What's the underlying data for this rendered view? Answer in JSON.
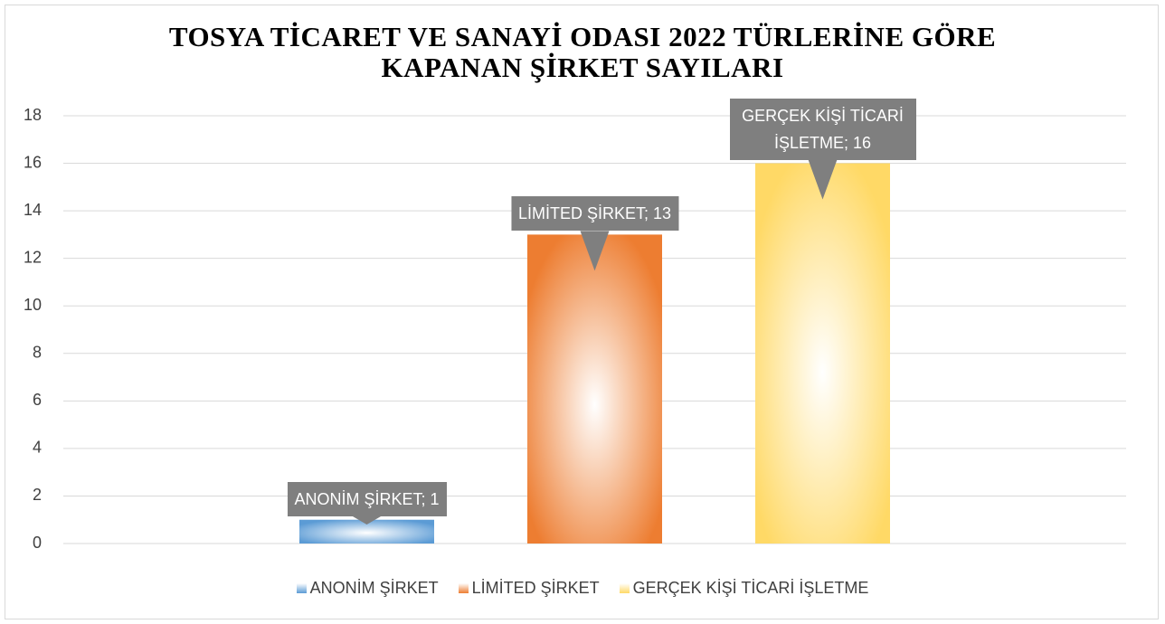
{
  "chart_data": {
    "type": "bar",
    "title": "TOSYA TİCARET VE SANAYİ ODASI 2022 TÜRLERİNE GÖRE KAPANAN ŞİRKET SAYILARI",
    "categories": [
      null
    ],
    "series": [
      {
        "name": "ANONİM ŞİRKET",
        "color": "#5b9bd5",
        "values": [
          1
        ],
        "value_labels": [
          "ANONİM ŞİRKET; 1"
        ]
      },
      {
        "name": "LİMİTED ŞİRKET",
        "color": "#ed7d31",
        "values": [
          13
        ],
        "value_labels": [
          "LİMİTED ŞİRKET; 13"
        ]
      },
      {
        "name": "GERÇEK KİŞİ TİCARİ İŞLETME",
        "color": "#ffd966",
        "values": [
          16
        ],
        "value_labels": [
          "GERÇEK KİŞİ TİCARİ İŞLETME; 16"
        ]
      }
    ],
    "ylim": [
      0,
      18
    ],
    "yticks": [
      0,
      2,
      4,
      6,
      8,
      10,
      12,
      14,
      16,
      18
    ],
    "grid": true,
    "legend": "bottom"
  }
}
